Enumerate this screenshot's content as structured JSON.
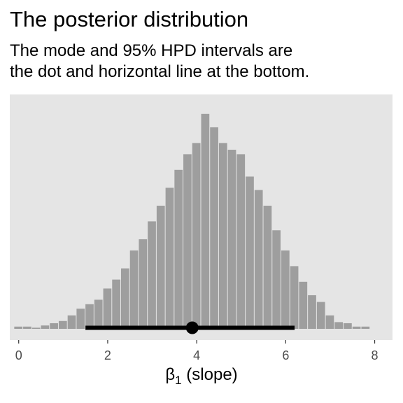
{
  "chart_data": {
    "type": "bar",
    "title": "The posterior distribution",
    "subtitle_lines": [
      "The mode and 95% HPD intervals are",
      "the dot and horizontal line at the bottom."
    ],
    "xlabel_symbol": "β",
    "xlabel_subscript": "1",
    "xlabel_rest": " (slope)",
    "ylabel": "",
    "xlim": [
      -0.2,
      8.4
    ],
    "ylim": [
      0,
      100
    ],
    "x_ticks": [
      {
        "value": 0,
        "label": "0"
      },
      {
        "value": 2,
        "label": "2"
      },
      {
        "value": 4,
        "label": "4"
      },
      {
        "value": 6,
        "label": "6"
      },
      {
        "value": 8,
        "label": "8"
      }
    ],
    "bin_width": 0.2,
    "bin_centers": [
      0.0,
      0.2,
      0.4,
      0.6,
      0.8,
      1.0,
      1.2,
      1.4,
      1.6,
      1.8,
      2.0,
      2.2,
      2.4,
      2.6,
      2.8,
      3.0,
      3.2,
      3.4,
      3.6,
      3.8,
      4.0,
      4.2,
      4.4,
      4.6,
      4.8,
      5.0,
      5.2,
      5.4,
      5.6,
      5.8,
      6.0,
      6.2,
      6.4,
      6.6,
      6.8,
      7.0,
      7.2,
      7.4,
      7.6,
      7.8
    ],
    "counts": [
      1,
      1,
      0.5,
      1.5,
      2.5,
      3.5,
      6,
      9,
      11,
      13,
      18,
      22,
      27,
      35,
      40,
      48,
      55,
      63,
      71,
      78,
      83,
      96,
      90,
      83,
      80,
      78,
      68,
      62,
      55,
      44,
      35,
      28,
      21,
      15,
      12,
      6,
      3,
      2.5,
      1,
      1
    ],
    "hpd_interval": [
      1.5,
      6.2
    ],
    "mode": 3.9,
    "grid": false,
    "colors": {
      "panel": "#e5e5e5",
      "bars": "#9e9e9e",
      "interval": "#000000"
    }
  }
}
